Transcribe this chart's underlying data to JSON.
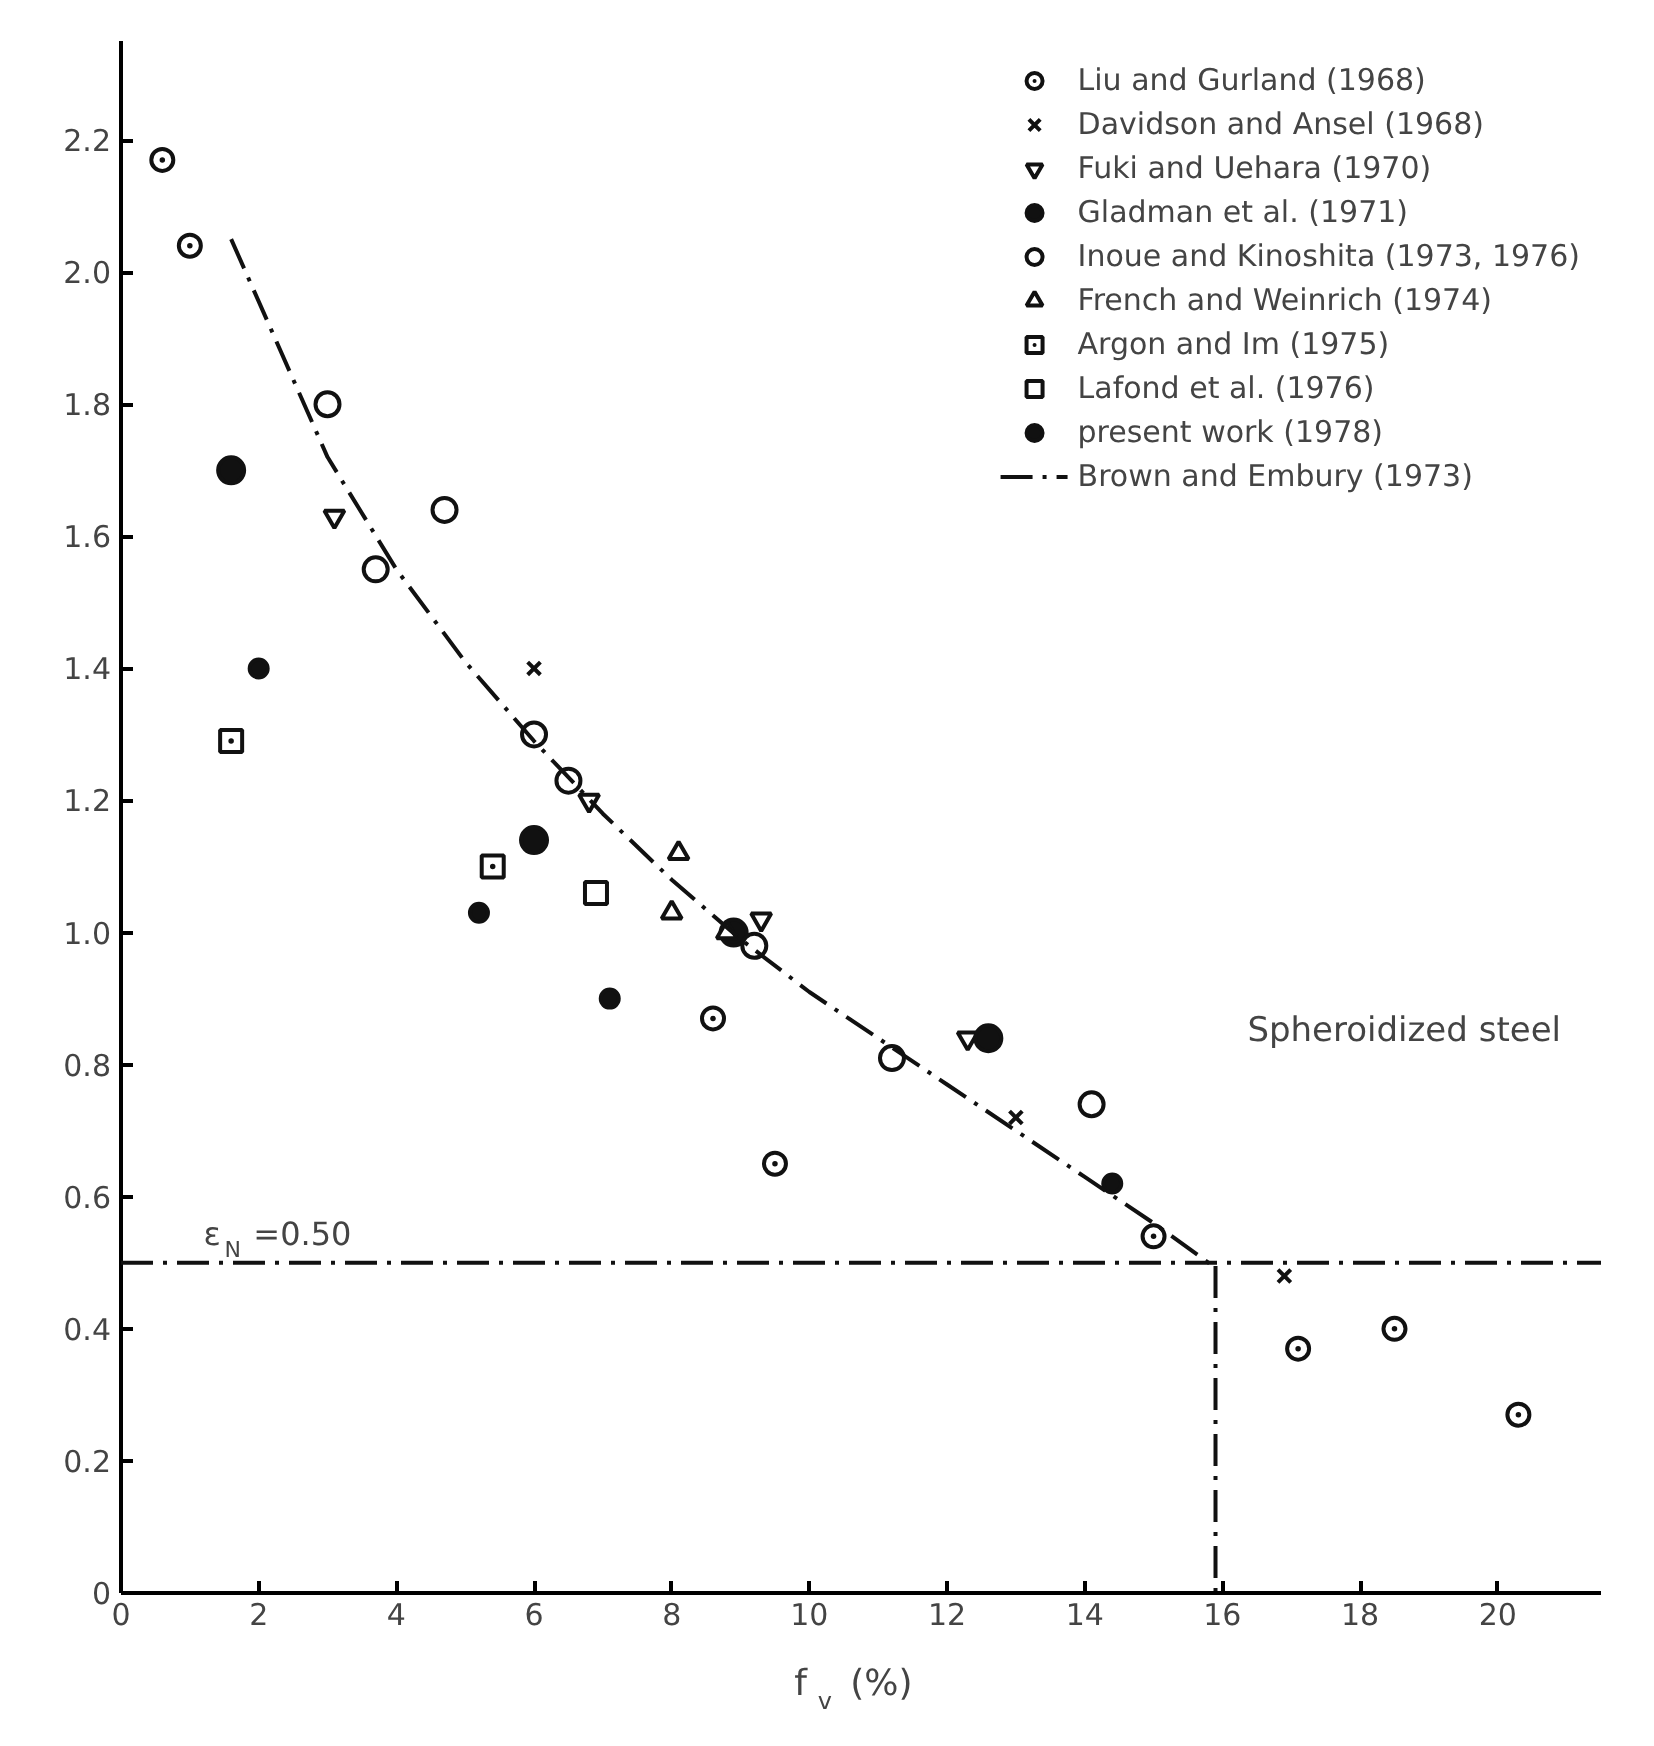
{
  "chart_data": {
    "type": "scatter",
    "xlabel": "f$_{v}$ (%)",
    "xlim": [
      0,
      21.5
    ],
    "ylim": [
      0,
      2.35
    ],
    "xticks": [
      0,
      2,
      4,
      6,
      8,
      10,
      12,
      14,
      16,
      18,
      20
    ],
    "yticks": [
      0,
      0.2,
      0.4,
      0.6,
      0.8,
      {
        "value": 1.0,
        "label": "1.0"
      },
      1.2,
      1.4,
      1.6,
      1.8,
      {
        "value": 2.0,
        "label": "2.0"
      },
      2.2
    ],
    "grid": false,
    "legend": "top right",
    "series": [
      {
        "name": "Liu and Gurland (1968)",
        "color": "#111111",
        "marker": "circle_dot",
        "x": [
          0.6,
          1.0,
          8.6,
          9.5,
          15.0,
          17.1,
          18.5,
          20.3
        ],
        "values": [
          2.17,
          2.04,
          0.87,
          0.65,
          0.54,
          0.37,
          0.4,
          0.27
        ]
      },
      {
        "name": "Davidson and Ansel (1968)",
        "color": "#111111",
        "marker": "x",
        "x": [
          6.0,
          13.0,
          16.9
        ],
        "values": [
          1.4,
          0.72,
          0.48
        ]
      },
      {
        "name": "Fuki and Uehara (1970)",
        "color": "#111111",
        "marker": "triangle",
        "x": [
          3.1,
          6.8,
          9.3,
          12.3
        ],
        "values": [
          1.63,
          1.2,
          1.02,
          0.84
        ]
      },
      {
        "name": "Gladman et al. (1971)",
        "color": "#111111",
        "marker": "circle",
        "x": [
          1.6,
          6.0,
          8.9,
          12.6
        ],
        "values": [
          1.7,
          1.14,
          1.0,
          0.84
        ]
      },
      {
        "name": "Inoue and Kinoshita (1973, 1976)",
        "color": "#111111",
        "marker": "circle",
        "x": [
          3.0,
          3.7,
          4.7,
          6.0,
          6.5,
          9.2,
          11.2,
          14.1
        ],
        "values": [
          1.8,
          1.55,
          1.64,
          1.3,
          1.23,
          0.98,
          0.81,
          0.74
        ]
      },
      {
        "name": "French and Weinrich (1974)",
        "color": "#111111",
        "marker": "triangle",
        "x": [
          8.1,
          8.0,
          8.8
        ],
        "values": [
          1.12,
          1.03,
          1.0
        ]
      },
      {
        "name": "Argon and Im (1975)",
        "color": "#111111",
        "marker": "square_dot",
        "x": [
          1.6,
          5.4
        ],
        "values": [
          1.29,
          1.1
        ]
      },
      {
        "name": "Lafond et al. (1976)",
        "color": "#111111",
        "marker": "square",
        "x": [
          6.9
        ],
        "values": [
          1.06
        ]
      },
      {
        "name": "present work (1978)",
        "color": "#111111",
        "marker": "circle",
        "x": [
          2.0,
          5.2,
          7.1,
          14.4
        ],
        "values": [
          1.4,
          1.03,
          0.9,
          0.62
        ]
      },
      {
        "name": "Brown and Embury (1973)",
        "type": "line",
        "line_style": "dashdot",
        "color": "#111111",
        "x": [
          1.6,
          3,
          4,
          5,
          6,
          7,
          8,
          9,
          10,
          11,
          12,
          13,
          14,
          15,
          15.8,
          15.9,
          15.9
        ],
        "values": [
          2.05,
          1.72,
          1.55,
          1.41,
          1.29,
          1.18,
          1.08,
          0.99,
          0.91,
          0.84,
          0.77,
          0.7,
          0.63,
          0.56,
          0.5,
          0.5,
          0
        ]
      }
    ],
    "ref_lines": [
      {
        "axis": "y",
        "value": 0.5,
        "label": "ε$_{N}$ =0.50",
        "line_style": "dashdot",
        "color": "#111111"
      }
    ],
    "annotations": [
      "Spheroidized steel"
    ]
  }
}
